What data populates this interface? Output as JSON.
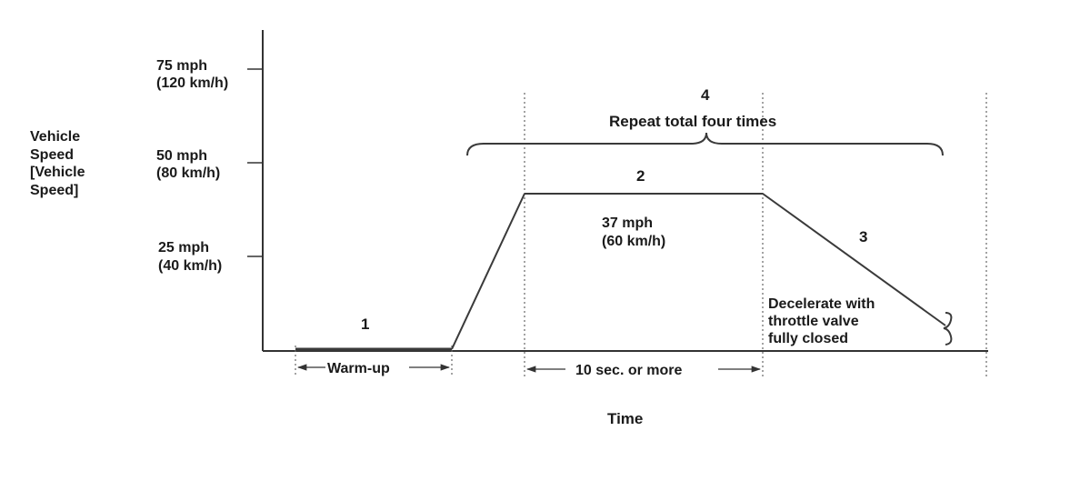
{
  "y_axis_label": [
    "Vehicle",
    "Speed",
    "[Vehicle",
    "Speed]"
  ],
  "y_ticks": [
    {
      "mph": "75 mph",
      "kmh": "(120 km/h)"
    },
    {
      "mph": "50 mph",
      "kmh": "(80 km/h)"
    },
    {
      "mph": "25 mph",
      "kmh": "(40 km/h)"
    }
  ],
  "x_axis_label": "Time",
  "steps": {
    "step1": "1",
    "step2": "2",
    "step3": "3",
    "step4": "4"
  },
  "repeat_label": "Repeat total four times",
  "cruise_speed": {
    "mph": "37 mph",
    "kmh": "(60 km/h)"
  },
  "decel_note": [
    "Decelerate with",
    "throttle valve",
    "fully closed"
  ],
  "intervals": {
    "warmup": "Warm-up",
    "hold": "10 sec. or more"
  },
  "colors": {
    "line": "#3a3a3a",
    "text": "#1a1a1a",
    "background": "#ffffff"
  }
}
